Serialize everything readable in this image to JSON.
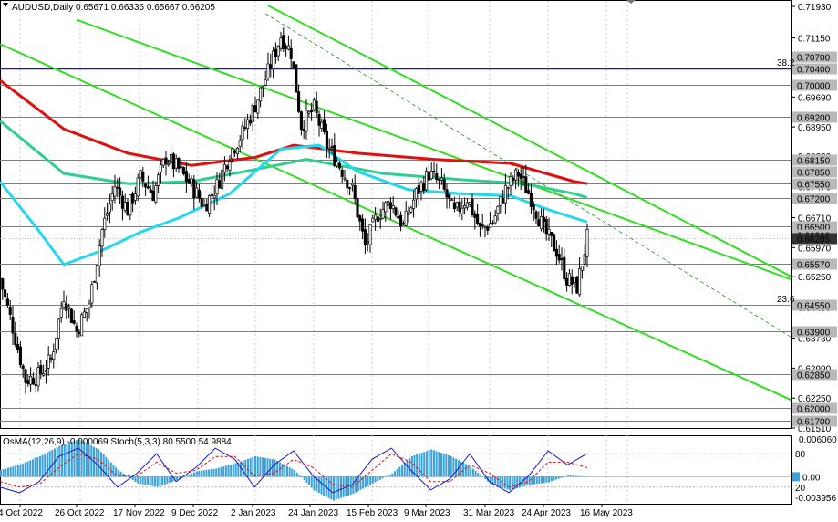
{
  "chart_data": {
    "type": "candlestick",
    "symbol": "AUDUSD",
    "timeframe": "Daily",
    "header_ohlc": [
      "0.65671",
      "0.66336",
      "0.65667",
      "0.66205"
    ],
    "y_ticks": [
      "0.71930",
      "0.71150",
      "0.70390",
      "0.69690",
      "0.68950",
      "0.68230",
      "0.67470",
      "0.66710",
      "0.65970",
      "0.65250",
      "0.64490",
      "0.63730",
      "0.62990",
      "0.62250",
      "0.61510"
    ],
    "y_range": [
      0.6151,
      0.7193
    ],
    "level_labels": [
      "0.70700",
      "0.70400",
      "0.70000",
      "0.69200",
      "0.68150",
      "0.67850",
      "0.67550",
      "0.67200",
      "0.66500",
      "0.66300",
      "0.66205",
      "0.65570",
      "0.64550",
      "0.63900",
      "0.62850",
      "0.62000",
      "0.61700"
    ],
    "fib_labels": [
      {
        "text": "38.2",
        "price": 0.704
      },
      {
        "text": "23.6",
        "price": 0.6455
      }
    ],
    "x_labels": [
      "4 Oct 2022",
      "26 Oct 2022",
      "17 Nov 2022",
      "9 Dec 2022",
      "2 Jan 2023",
      "24 Jan 2023",
      "15 Feb 2023",
      "9 Mar 2023",
      "31 Mar 2023",
      "24 Apr 2023",
      "16 May 2023"
    ],
    "close_path": [
      [
        0,
        0.652
      ],
      [
        5,
        0.64
      ],
      [
        10,
        0.627
      ],
      [
        15,
        0.628
      ],
      [
        20,
        0.632
      ],
      [
        25,
        0.648
      ],
      [
        30,
        0.639
      ],
      [
        35,
        0.646
      ],
      [
        40,
        0.664
      ],
      [
        45,
        0.675
      ],
      [
        50,
        0.669
      ],
      [
        55,
        0.677
      ],
      [
        60,
        0.673
      ],
      [
        65,
        0.682
      ],
      [
        70,
        0.679
      ],
      [
        75,
        0.675
      ],
      [
        80,
        0.67
      ],
      [
        85,
        0.675
      ],
      [
        90,
        0.683
      ],
      [
        95,
        0.688
      ],
      [
        100,
        0.695
      ],
      [
        105,
        0.703
      ],
      [
        110,
        0.712
      ],
      [
        114,
        0.708
      ],
      [
        118,
        0.69
      ],
      [
        123,
        0.694
      ],
      [
        128,
        0.685
      ],
      [
        133,
        0.68
      ],
      [
        138,
        0.674
      ],
      [
        143,
        0.66
      ],
      [
        148,
        0.668
      ],
      [
        153,
        0.671
      ],
      [
        158,
        0.665
      ],
      [
        163,
        0.673
      ],
      [
        168,
        0.678
      ],
      [
        173,
        0.675
      ],
      [
        178,
        0.668
      ],
      [
        183,
        0.672
      ],
      [
        188,
        0.664
      ],
      [
        193,
        0.666
      ],
      [
        198,
        0.674
      ],
      [
        203,
        0.678
      ],
      [
        208,
        0.672
      ],
      [
        213,
        0.664
      ],
      [
        218,
        0.659
      ],
      [
        222,
        0.652
      ],
      [
        226,
        0.65
      ],
      [
        230,
        0.6621
      ]
    ],
    "ma_lines": [
      {
        "color": "#e01010",
        "points": [
          [
            0,
            0.701
          ],
          [
            25,
            0.689
          ],
          [
            50,
            0.683
          ],
          [
            75,
            0.68
          ],
          [
            100,
            0.682
          ],
          [
            115,
            0.685
          ],
          [
            140,
            0.683
          ],
          [
            170,
            0.6815
          ],
          [
            200,
            0.6805
          ],
          [
            225,
            0.676
          ],
          [
            230,
            0.6755
          ]
        ]
      },
      {
        "color": "#2ecf8f",
        "points": [
          [
            0,
            0.691
          ],
          [
            25,
            0.678
          ],
          [
            50,
            0.6755
          ],
          [
            75,
            0.676
          ],
          [
            100,
            0.679
          ],
          [
            120,
            0.6815
          ],
          [
            150,
            0.678
          ],
          [
            180,
            0.6765
          ],
          [
            205,
            0.6755
          ],
          [
            225,
            0.673
          ],
          [
            230,
            0.672
          ]
        ]
      },
      {
        "color": "#22d8ee",
        "points": [
          [
            0,
            0.676
          ],
          [
            15,
            0.664
          ],
          [
            25,
            0.6555
          ],
          [
            40,
            0.659
          ],
          [
            55,
            0.6635
          ],
          [
            70,
            0.667
          ],
          [
            90,
            0.673
          ],
          [
            110,
            0.684
          ],
          [
            125,
            0.685
          ],
          [
            140,
            0.6785
          ],
          [
            160,
            0.674
          ],
          [
            180,
            0.673
          ],
          [
            200,
            0.6725
          ],
          [
            215,
            0.669
          ],
          [
            230,
            0.666
          ]
        ]
      }
    ],
    "trend_lines": [
      {
        "color": "#33dd22",
        "from": [
          30,
          0.716
        ],
        "to": [
          310,
          0.6518
        ]
      },
      {
        "color": "#33dd22",
        "from": [
          0,
          0.71
        ],
        "to": [
          310,
          0.622
        ]
      },
      {
        "color": "#33dd22",
        "from": [
          105,
          0.7195
        ],
        "to": [
          310,
          0.6525
        ]
      }
    ],
    "osma": {
      "label": "OsMA(12,26,9) -0.000069",
      "ticks": [
        "0.006060",
        "0.00",
        "-0.003956"
      ],
      "values": [
        0.001,
        0.0018,
        0.003,
        0.0045,
        0.0055,
        0.004,
        0.001,
        -0.001,
        -0.0015,
        -0.0005,
        0.0008,
        0.0012,
        0.002,
        0.003,
        0.0025,
        0.001,
        -0.002,
        -0.0035,
        -0.0025,
        -0.001,
        0.0005,
        0.003,
        0.004,
        0.003,
        0.0015,
        -0.001,
        -0.002,
        -0.0012,
        -0.0008,
        0.0002,
        0.0
      ]
    },
    "stoch": {
      "label": "Stoch(5,3,3) 80.5500 54.9884",
      "levels": [
        "80",
        "20"
      ],
      "k": [
        20,
        10,
        30,
        75,
        90,
        60,
        20,
        45,
        80,
        30,
        55,
        90,
        70,
        20,
        60,
        85,
        40,
        10,
        25,
        70,
        90,
        50,
        15,
        35,
        80,
        30,
        10,
        40,
        85,
        60,
        80.55
      ],
      "d": [
        30,
        20,
        25,
        55,
        80,
        70,
        40,
        40,
        65,
        45,
        50,
        75,
        75,
        40,
        45,
        70,
        55,
        25,
        20,
        50,
        80,
        65,
        30,
        30,
        60,
        45,
        20,
        30,
        65,
        65,
        54.99
      ]
    }
  }
}
